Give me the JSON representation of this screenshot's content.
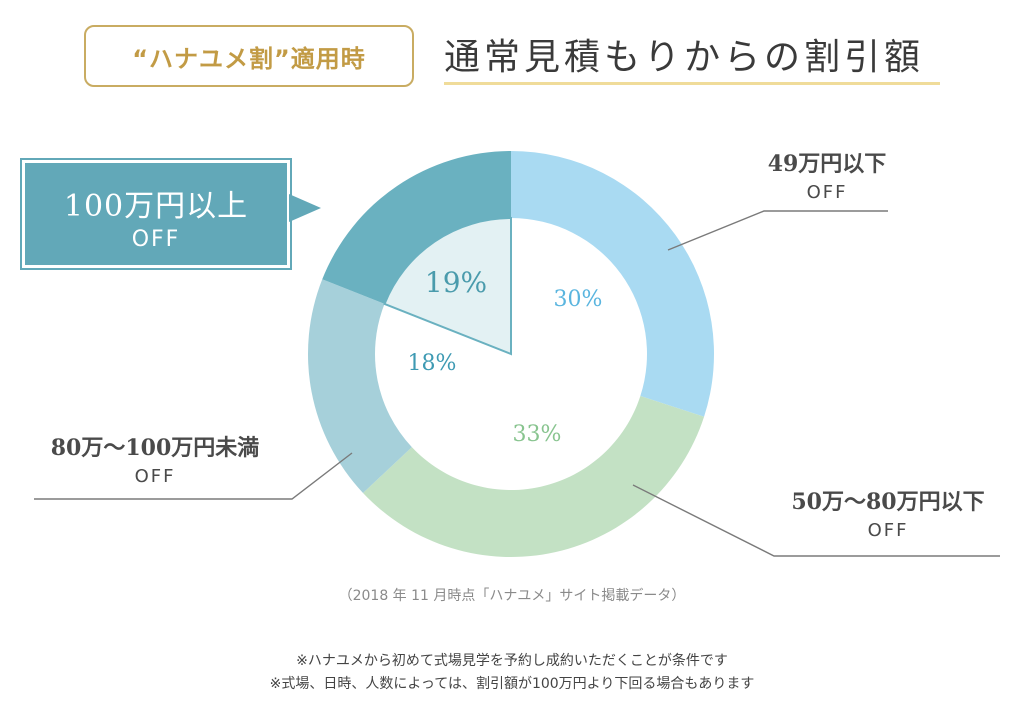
{
  "header": {
    "badge": "“ハナユメ割”適用時",
    "title": "通常見積もりからの割引額"
  },
  "chart_data": {
    "type": "pie",
    "style": "donut",
    "categories": [
      "49万円以下",
      "50万〜80万円以下",
      "80万〜100万円未満",
      "100万円以上"
    ],
    "values": [
      30,
      33,
      18,
      19
    ],
    "value_labels": [
      "30%",
      "33%",
      "18%",
      "19%"
    ],
    "colors": [
      "#a9daf2",
      "#c3e1c4",
      "#a6d0da",
      "#6ab1c0"
    ],
    "label_colors": [
      "#5ab5df",
      "#88c48f",
      "#3e9ab3",
      "#4a9bac"
    ],
    "highlight_index": 3,
    "highlight_fill": "#e3f1f3"
  },
  "labels": {
    "seg_100": {
      "amount": "100万円以上",
      "off": "OFF"
    },
    "seg_49": {
      "amount": "49万円以下",
      "off": "OFF"
    },
    "seg_80_100": {
      "amount": "80万〜100万円未満",
      "off": "OFF"
    },
    "seg_50_80": {
      "amount": "50万〜80万円以下",
      "off": "OFF"
    }
  },
  "source": "（2018 年 11 月時点「ハナユメ」サイト掲載データ）",
  "notes": [
    "※ハナユメから初めて式場見学を予約し成約いただくことが条件です",
    "※式場、日時、人数によっては、割引額が100万円より下回る場合もあります"
  ]
}
